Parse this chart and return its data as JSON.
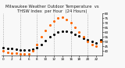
{
  "hours": [
    0,
    1,
    2,
    3,
    4,
    5,
    6,
    7,
    8,
    9,
    10,
    11,
    12,
    13,
    14,
    15,
    16,
    17,
    18,
    19,
    20,
    21,
    22,
    23
  ],
  "temp": [
    44,
    43,
    43,
    42,
    41,
    41,
    41,
    42,
    44,
    47,
    51,
    55,
    58,
    60,
    61,
    61,
    60,
    58,
    56,
    54,
    52,
    50,
    49,
    52
  ],
  "thsw": [
    40,
    39,
    38,
    38,
    37,
    37,
    37,
    40,
    47,
    55,
    62,
    68,
    72,
    75,
    76,
    74,
    70,
    65,
    60,
    55,
    50,
    47,
    45,
    50
  ],
  "temp_color": "#000000",
  "thsw_color": "#ff6600",
  "bg_color": "#f8f8f8",
  "ylim_min": 35,
  "ylim_max": 80,
  "yticks": [
    40,
    45,
    50,
    55,
    60,
    65,
    70,
    75,
    80
  ],
  "xticks": [
    0,
    2,
    4,
    6,
    8,
    10,
    12,
    14,
    16,
    18,
    20,
    22
  ],
  "grid_hours": [
    0,
    4,
    8,
    12,
    16,
    20
  ],
  "title_fontsize": 3.8,
  "tick_fontsize": 3.0,
  "marker_size": 1.2
}
